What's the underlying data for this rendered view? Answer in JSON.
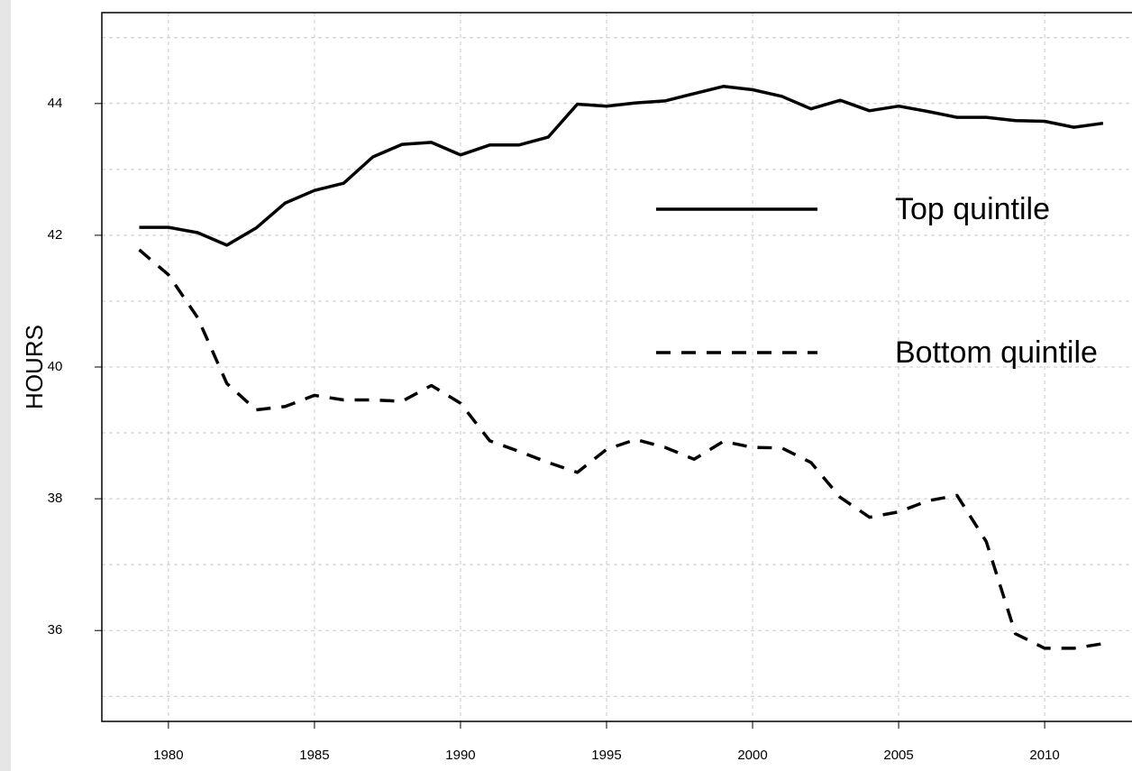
{
  "chart_data": {
    "type": "line",
    "y_label": "HOURS",
    "x": [
      1979,
      1980,
      1981,
      1982,
      1983,
      1984,
      1985,
      1986,
      1987,
      1988,
      1989,
      1990,
      1991,
      1992,
      1993,
      1994,
      1995,
      1996,
      1997,
      1998,
      1999,
      2000,
      2001,
      2002,
      2003,
      2004,
      2005,
      2006,
      2007,
      2008,
      2009,
      2010,
      2011,
      2012
    ],
    "series": [
      {
        "name": "Top quintile",
        "color": "#000000",
        "dash": "solid",
        "values": [
          42.12,
          42.12,
          42.04,
          41.85,
          42.11,
          42.49,
          42.68,
          42.79,
          43.19,
          43.38,
          43.41,
          43.22,
          43.37,
          43.37,
          43.49,
          43.99,
          43.96,
          44.01,
          44.04,
          44.15,
          44.26,
          44.21,
          44.11,
          43.92,
          44.05,
          43.89,
          43.96,
          43.88,
          43.79,
          43.79,
          43.74,
          43.73,
          43.64,
          43.7
        ]
      },
      {
        "name": "Bottom quintile",
        "color": "#000000",
        "dash": "dashed",
        "values": [
          41.78,
          41.4,
          40.75,
          39.75,
          39.35,
          39.4,
          39.57,
          39.5,
          39.5,
          39.48,
          39.72,
          39.45,
          38.88,
          38.72,
          38.55,
          38.4,
          38.75,
          38.9,
          38.78,
          38.6,
          38.87,
          38.78,
          38.77,
          38.55,
          38.02,
          37.72,
          37.8,
          37.97,
          38.05,
          37.35,
          35.95,
          35.73,
          35.73,
          35.8
        ]
      }
    ],
    "xlim": [
      1977.72,
      2012.99
    ],
    "xticks": [
      1980,
      1985,
      1990,
      1995,
      2000,
      2005,
      2010
    ],
    "ylim": [
      34.62,
      45.38
    ],
    "yticks": [
      36,
      38,
      40,
      42,
      44
    ],
    "y_minor_grid": [
      35,
      37,
      39,
      41,
      43,
      45
    ],
    "grid": true
  }
}
